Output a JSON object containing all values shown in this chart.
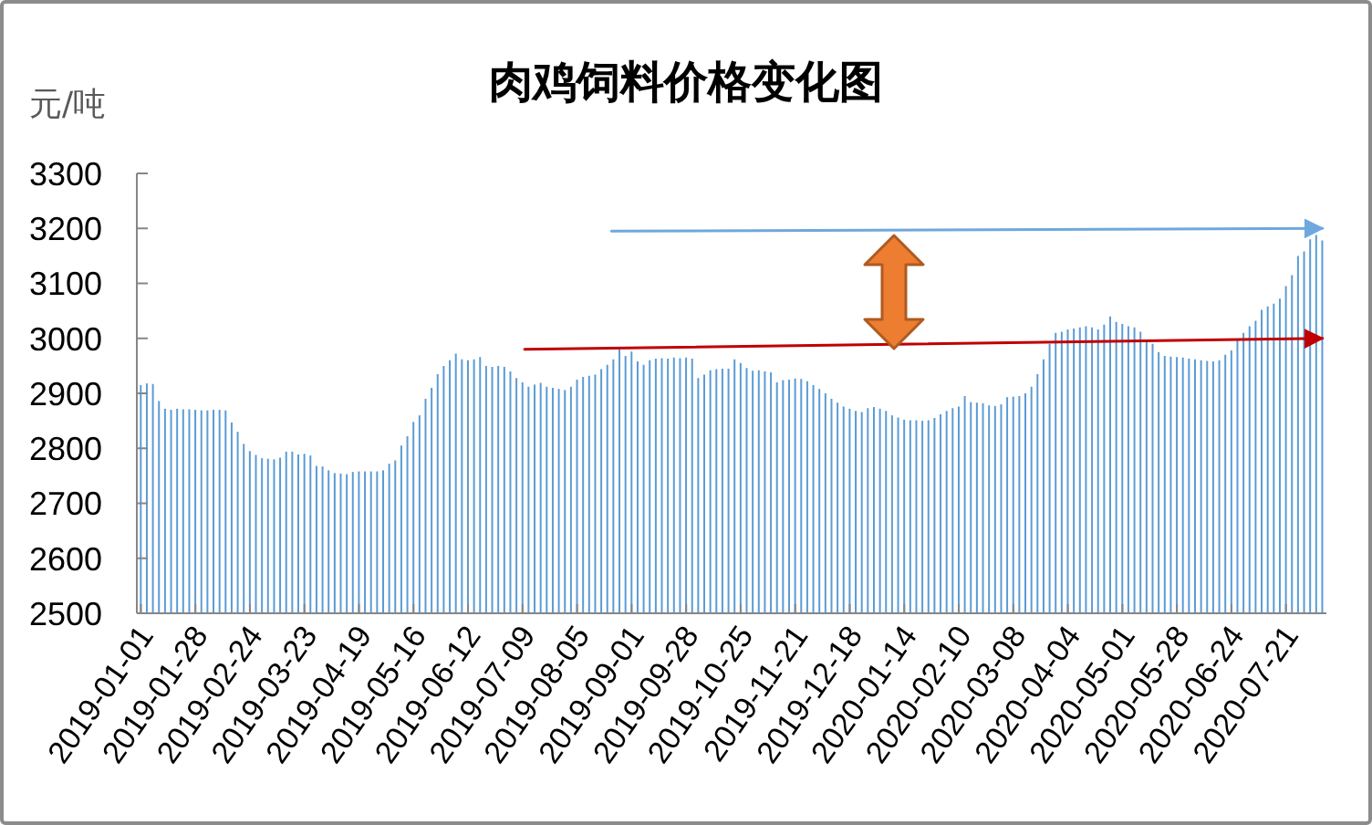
{
  "chart_data": {
    "type": "bar",
    "title": "肉鸡饲料价格变化图",
    "ylabel": "元/吨",
    "x": [
      "2019-01-01",
      "2019-01-04",
      "2019-01-07",
      "2019-01-10",
      "2019-01-13",
      "2019-01-16",
      "2019-01-19",
      "2019-01-22",
      "2019-01-25",
      "2019-01-28",
      "2019-01-31",
      "2019-02-03",
      "2019-02-06",
      "2019-02-09",
      "2019-02-12",
      "2019-02-15",
      "2019-02-18",
      "2019-02-21",
      "2019-02-24",
      "2019-02-27",
      "2019-03-02",
      "2019-03-05",
      "2019-03-08",
      "2019-03-11",
      "2019-03-14",
      "2019-03-17",
      "2019-03-20",
      "2019-03-23",
      "2019-03-26",
      "2019-03-29",
      "2019-04-01",
      "2019-04-04",
      "2019-04-07",
      "2019-04-10",
      "2019-04-13",
      "2019-04-16",
      "2019-04-19",
      "2019-04-22",
      "2019-04-25",
      "2019-04-28",
      "2019-05-01",
      "2019-05-04",
      "2019-05-07",
      "2019-05-10",
      "2019-05-13",
      "2019-05-16",
      "2019-05-19",
      "2019-05-22",
      "2019-05-25",
      "2019-05-28",
      "2019-05-31",
      "2019-06-03",
      "2019-06-06",
      "2019-06-09",
      "2019-06-12",
      "2019-06-15",
      "2019-06-18",
      "2019-06-21",
      "2019-06-24",
      "2019-06-27",
      "2019-06-30",
      "2019-07-03",
      "2019-07-06",
      "2019-07-09",
      "2019-07-12",
      "2019-07-15",
      "2019-07-18",
      "2019-07-21",
      "2019-07-24",
      "2019-07-27",
      "2019-07-30",
      "2019-08-02",
      "2019-08-05",
      "2019-08-08",
      "2019-08-11",
      "2019-08-14",
      "2019-08-17",
      "2019-08-20",
      "2019-08-23",
      "2019-08-26",
      "2019-08-29",
      "2019-09-01",
      "2019-09-04",
      "2019-09-07",
      "2019-09-10",
      "2019-09-13",
      "2019-09-16",
      "2019-09-19",
      "2019-09-22",
      "2019-09-25",
      "2019-09-28",
      "2019-10-01",
      "2019-10-04",
      "2019-10-07",
      "2019-10-10",
      "2019-10-13",
      "2019-10-16",
      "2019-10-19",
      "2019-10-22",
      "2019-10-25",
      "2019-10-28",
      "2019-10-31",
      "2019-11-03",
      "2019-11-06",
      "2019-11-09",
      "2019-11-12",
      "2019-11-15",
      "2019-11-18",
      "2019-11-21",
      "2019-11-24",
      "2019-11-27",
      "2019-11-30",
      "2019-12-03",
      "2019-12-06",
      "2019-12-09",
      "2019-12-12",
      "2019-12-15",
      "2019-12-18",
      "2019-12-21",
      "2019-12-24",
      "2019-12-27",
      "2019-12-30",
      "2020-01-02",
      "2020-01-05",
      "2020-01-08",
      "2020-01-11",
      "2020-01-14",
      "2020-01-17",
      "2020-01-20",
      "2020-01-23",
      "2020-01-26",
      "2020-01-29",
      "2020-02-01",
      "2020-02-04",
      "2020-02-07",
      "2020-02-10",
      "2020-02-13",
      "2020-02-16",
      "2020-02-19",
      "2020-02-22",
      "2020-02-25",
      "2020-02-28",
      "2020-03-02",
      "2020-03-05",
      "2020-03-08",
      "2020-03-11",
      "2020-03-14",
      "2020-03-17",
      "2020-03-20",
      "2020-03-23",
      "2020-03-26",
      "2020-03-29",
      "2020-04-01",
      "2020-04-04",
      "2020-04-07",
      "2020-04-10",
      "2020-04-13",
      "2020-04-16",
      "2020-04-19",
      "2020-04-22",
      "2020-04-25",
      "2020-04-28",
      "2020-05-01",
      "2020-05-04",
      "2020-05-07",
      "2020-05-10",
      "2020-05-13",
      "2020-05-16",
      "2020-05-19",
      "2020-05-22",
      "2020-05-25",
      "2020-05-28",
      "2020-05-31",
      "2020-06-03",
      "2020-06-06",
      "2020-06-09",
      "2020-06-12",
      "2020-06-15",
      "2020-06-18",
      "2020-06-21",
      "2020-06-24",
      "2020-06-27",
      "2020-06-30",
      "2020-07-03",
      "2020-07-06",
      "2020-07-09",
      "2020-07-12",
      "2020-07-15",
      "2020-07-18",
      "2020-07-21",
      "2020-07-24",
      "2020-07-27",
      "2020-07-30",
      "2020-08-02",
      "2020-08-05",
      "2020-08-08"
    ],
    "xlim": [
      "2018-12-30",
      "2020-08-10"
    ],
    "xticks": [
      "2019-01-01",
      "2019-01-28",
      "2019-02-24",
      "2019-03-23",
      "2019-04-19",
      "2019-05-16",
      "2019-06-12",
      "2019-07-09",
      "2019-08-05",
      "2019-09-01",
      "2019-09-28",
      "2019-10-25",
      "2019-11-21",
      "2019-12-18",
      "2020-01-14",
      "2020-02-10",
      "2020-03-08",
      "2020-04-04",
      "2020-05-01",
      "2020-05-28",
      "2020-06-24",
      "2020-07-21"
    ],
    "ylim": [
      2500,
      3300
    ],
    "yticks": [
      2500,
      2600,
      2700,
      2800,
      2900,
      3000,
      3100,
      3200,
      3300
    ],
    "series": [
      {
        "color": "#5b9bd5",
        "values": [
          2915,
          2918,
          2917,
          2886,
          2872,
          2870,
          2872,
          2871,
          2871,
          2870,
          2869,
          2869,
          2870,
          2870,
          2869,
          2847,
          2830,
          2808,
          2795,
          2788,
          2782,
          2781,
          2780,
          2783,
          2794,
          2794,
          2789,
          2790,
          2787,
          2768,
          2767,
          2760,
          2755,
          2754,
          2753,
          2757,
          2758,
          2758,
          2758,
          2758,
          2760,
          2772,
          2778,
          2805,
          2822,
          2848,
          2860,
          2890,
          2910,
          2935,
          2950,
          2960,
          2972,
          2962,
          2960,
          2962,
          2966,
          2950,
          2948,
          2950,
          2948,
          2940,
          2928,
          2920,
          2912,
          2916,
          2919,
          2912,
          2910,
          2908,
          2906,
          2912,
          2925,
          2930,
          2932,
          2934,
          2944,
          2952,
          2962,
          2980,
          2968,
          2976,
          2958,
          2952,
          2960,
          2963,
          2964,
          2963,
          2965,
          2964,
          2965,
          2963,
          2928,
          2934,
          2942,
          2944,
          2945,
          2945,
          2962,
          2955,
          2946,
          2941,
          2942,
          2940,
          2938,
          2920,
          2924,
          2925,
          2927,
          2926,
          2922,
          2915,
          2908,
          2900,
          2890,
          2883,
          2876,
          2872,
          2868,
          2866,
          2873,
          2875,
          2872,
          2868,
          2860,
          2856,
          2852,
          2851,
          2851,
          2850,
          2851,
          2855,
          2862,
          2868,
          2873,
          2876,
          2895,
          2884,
          2883,
          2882,
          2878,
          2877,
          2880,
          2893,
          2894,
          2895,
          2900,
          2912,
          2935,
          2962,
          2990,
          3010,
          3012,
          3016,
          3018,
          3020,
          3022,
          3020,
          3016,
          3025,
          3040,
          3030,
          3026,
          3022,
          3020,
          3012,
          2997,
          2990,
          2975,
          2968,
          2967,
          2966,
          2965,
          2963,
          2962,
          2960,
          2959,
          2958,
          2960,
          2970,
          2978,
          2997,
          3010,
          3022,
          3032,
          3052,
          3058,
          3063,
          3072,
          3095,
          3115,
          3150,
          3158,
          3180,
          3188,
          3178
        ]
      },
      {
        "type": "line",
        "color": "#c00000",
        "x": [
          "2019-07-10",
          "2020-08-08"
        ],
        "values": [
          2980,
          3000
        ]
      },
      {
        "type": "line",
        "color": "#6fa8dc",
        "x": [
          "2019-08-22",
          "2020-08-08"
        ],
        "values": [
          3195,
          3200
        ]
      }
    ]
  }
}
